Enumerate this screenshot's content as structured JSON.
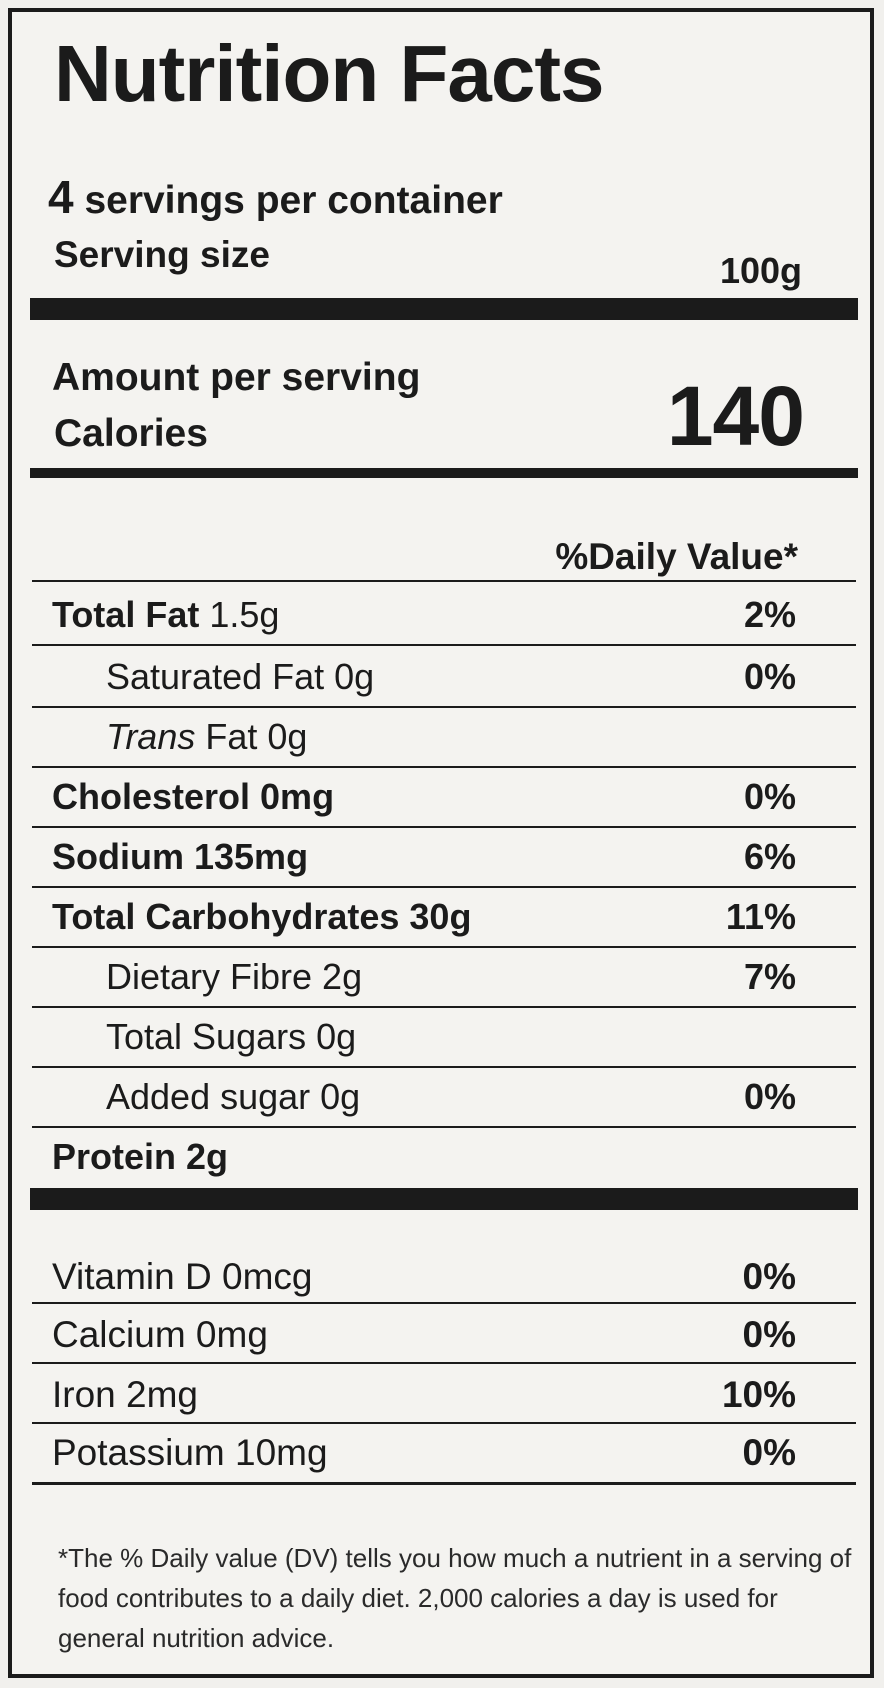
{
  "label": {
    "title": "Nutrition Facts",
    "servings_number": "4",
    "servings_text": "servings per container",
    "serving_size_label": "Serving size",
    "serving_size_value": "100g",
    "amount_per_serving": "Amount per serving",
    "calories_label": "Calories",
    "calories_value": "140",
    "daily_value_header": "%Daily Value*"
  },
  "nutrients": {
    "total_fat": {
      "name": "Total Fat",
      "amount": "1.5g",
      "dv": "2%"
    },
    "saturated_fat": {
      "name": "Saturated Fat 0g",
      "dv": "0%"
    },
    "trans_fat": {
      "name_italic": "Trans",
      "name_rest": "Fat 0g"
    },
    "cholesterol": {
      "name": "Cholesterol 0mg",
      "dv": "0%"
    },
    "sodium": {
      "name": "Sodium 135mg",
      "dv": "6%"
    },
    "total_carbs": {
      "name": "Total Carbohydrates 30g",
      "dv": "11%"
    },
    "dietary_fibre": {
      "name": "Dietary Fibre 2g",
      "dv": "7%"
    },
    "total_sugars": {
      "name": "Total Sugars 0g"
    },
    "added_sugar": {
      "name": "Added sugar 0g",
      "dv": "0%"
    },
    "protein": {
      "name": "Protein 2g"
    }
  },
  "vitamins": [
    {
      "name": "Vitamin D 0mcg",
      "dv": "0%"
    },
    {
      "name": "Calcium 0mg",
      "dv": "0%"
    },
    {
      "name": "Iron 2mg",
      "dv": "10%"
    },
    {
      "name": "Potassium 10mg",
      "dv": "0%"
    }
  ],
  "footnote": "*The % Daily value (DV) tells you how much a nutrient in a serving of food contributes to a daily diet. 2,000 calories a day is used for general nutrition advice."
}
